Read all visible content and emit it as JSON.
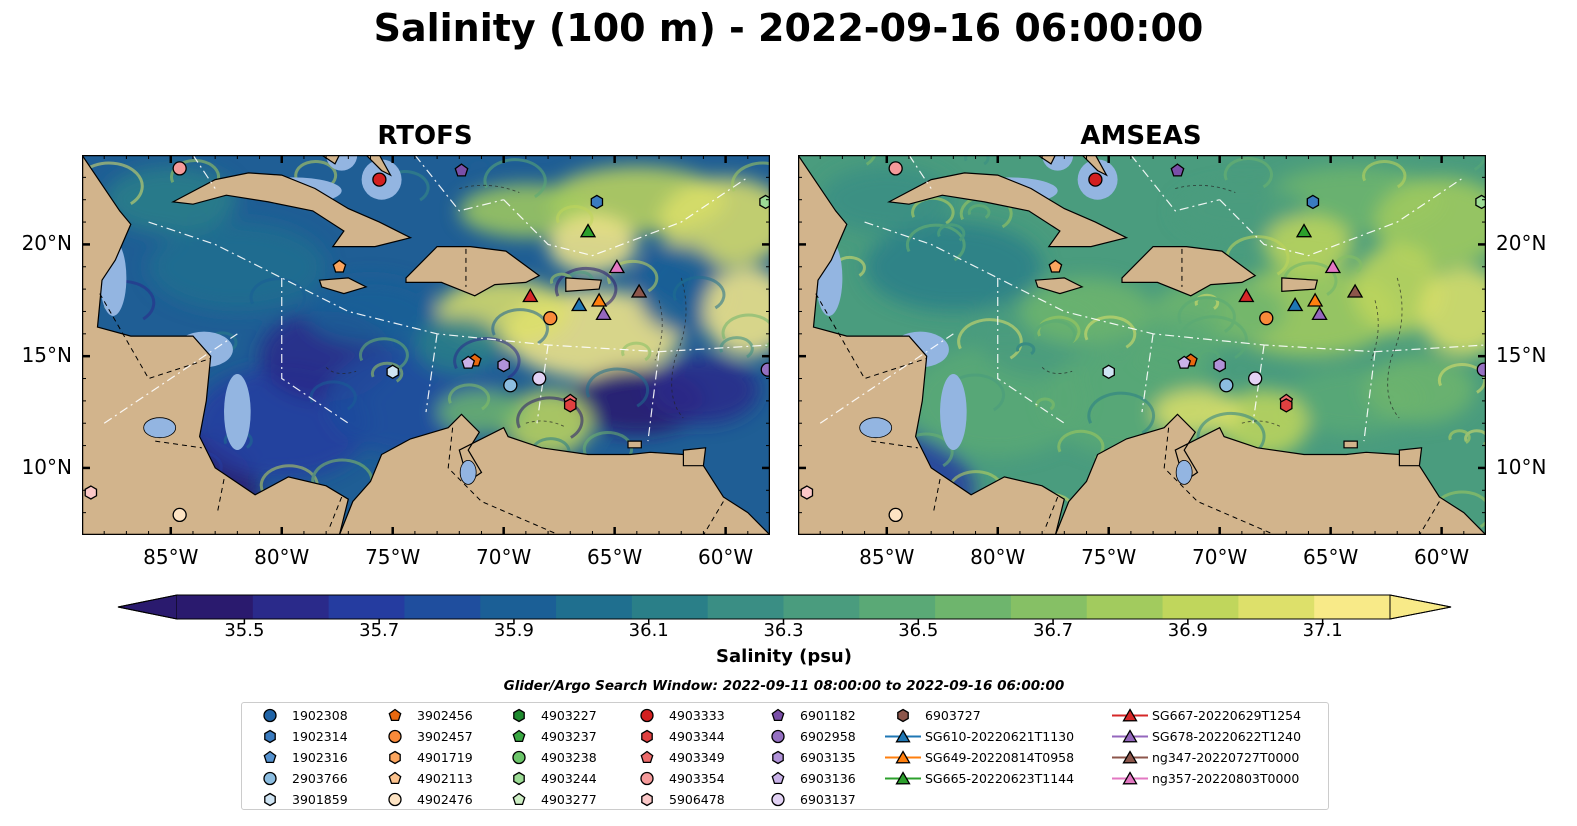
{
  "title": "Salinity (100 m) - 2022-09-16 06:00:00",
  "panels": [
    {
      "title": "RTOFS"
    },
    {
      "title": "AMSEAS"
    }
  ],
  "axes": {
    "x_ticks": [
      "85°W",
      "80°W",
      "75°W",
      "70°W",
      "65°W",
      "60°W"
    ],
    "y_ticks": [
      "20°N",
      "15°N",
      "10°N"
    ],
    "lon_range": [
      -89,
      -58
    ],
    "lat_range": [
      7,
      24
    ]
  },
  "colorbar": {
    "label": "Salinity (psu)",
    "ticks": [
      "35.5",
      "35.7",
      "35.9",
      "36.1",
      "36.3",
      "36.5",
      "36.7",
      "36.9",
      "37.1"
    ],
    "range": [
      35.4,
      37.2
    ],
    "colormap": "haline",
    "colors": [
      "#2a1a6e",
      "#2a2a8a",
      "#253ca0",
      "#1f4e9e",
      "#1b5f96",
      "#1f6f8f",
      "#2a7f88",
      "#3a8e84",
      "#4a9c7e",
      "#5aa976",
      "#6eb56d",
      "#86c065",
      "#a2cb5e",
      "#c0d65c",
      "#dde06a",
      "#f8ea88"
    ]
  },
  "legend": {
    "title": "Glider/Argo Search Window: 2022-09-11 08:00:00 to 2022-09-16 06:00:00",
    "columns": [
      [
        {
          "label": "1902308",
          "marker": "circle",
          "color": "#1f63a6"
        },
        {
          "label": "1902314",
          "marker": "hexagon",
          "color": "#3a7bbf"
        },
        {
          "label": "1902316",
          "marker": "pentagon",
          "color": "#5592cf"
        },
        {
          "label": "2903766",
          "marker": "circle",
          "color": "#8cbde0"
        },
        {
          "label": "3901859",
          "marker": "hexagon",
          "color": "#cfe4f3"
        }
      ],
      [
        {
          "label": "3902456",
          "marker": "pentagon",
          "color": "#e8680f"
        },
        {
          "label": "3902457",
          "marker": "circle",
          "color": "#f98a3a"
        },
        {
          "label": "4901719",
          "marker": "hexagon",
          "color": "#fba55e"
        },
        {
          "label": "4902113",
          "marker": "pentagon",
          "color": "#fcc38e"
        },
        {
          "label": "4902476",
          "marker": "circle",
          "color": "#fde3c3"
        }
      ],
      [
        {
          "label": "4903227",
          "marker": "hexagon",
          "color": "#1e8a2e"
        },
        {
          "label": "4903237",
          "marker": "pentagon",
          "color": "#3aa843"
        },
        {
          "label": "4903238",
          "marker": "circle",
          "color": "#6cc56a"
        },
        {
          "label": "4903244",
          "marker": "hexagon",
          "color": "#9cdc95"
        },
        {
          "label": "4903277",
          "marker": "pentagon",
          "color": "#cdeec4"
        }
      ],
      [
        {
          "label": "4903333",
          "marker": "circle",
          "color": "#d31f1f"
        },
        {
          "label": "4903344",
          "marker": "hexagon",
          "color": "#e04040"
        },
        {
          "label": "4903349",
          "marker": "pentagon",
          "color": "#ec6b6b"
        },
        {
          "label": "4903354",
          "marker": "circle",
          "color": "#f59a9a"
        },
        {
          "label": "5906478",
          "marker": "hexagon",
          "color": "#fbc8c8"
        }
      ],
      [
        {
          "label": "6901182",
          "marker": "pentagon",
          "color": "#7a4fa8"
        },
        {
          "label": "6902958",
          "marker": "circle",
          "color": "#9570c2"
        },
        {
          "label": "6903135",
          "marker": "hexagon",
          "color": "#b092d8"
        },
        {
          "label": "6903136",
          "marker": "pentagon",
          "color": "#c9b2e8"
        },
        {
          "label": "6903137",
          "marker": "circle",
          "color": "#e2d2f4"
        }
      ],
      [
        {
          "label": "6903727",
          "marker": "hexagon",
          "color": "#8c564b"
        },
        {
          "label": "SG610-20220621T1130",
          "marker": "triangle",
          "color": "#1f77b4",
          "line": true
        },
        {
          "label": "SG649-20220814T0958",
          "marker": "triangle",
          "color": "#ff7f0e",
          "line": true
        },
        {
          "label": "SG665-20220623T1144",
          "marker": "triangle",
          "color": "#2ca02c",
          "line": true
        }
      ],
      [
        {
          "label": "SG667-20220629T1254",
          "marker": "triangle",
          "color": "#d62728",
          "line": true
        },
        {
          "label": "SG678-20220622T1240",
          "marker": "triangle",
          "color": "#9467bd",
          "line": true
        },
        {
          "label": "ng347-20220727T0000",
          "marker": "triangle",
          "color": "#8c564b",
          "line": true
        },
        {
          "label": "ng357-20220803T0000",
          "marker": "triangle",
          "color": "#e377c2",
          "line": true
        }
      ]
    ]
  },
  "map_points": [
    {
      "lon": -84.6,
      "lat": 23.4,
      "marker": "circle",
      "color": "#f59a9a"
    },
    {
      "lon": -75.6,
      "lat": 22.9,
      "marker": "circle",
      "color": "#d31f1f"
    },
    {
      "lon": -71.9,
      "lat": 23.3,
      "marker": "pentagon",
      "color": "#7a4fa8"
    },
    {
      "lon": -65.8,
      "lat": 21.9,
      "marker": "hexagon",
      "color": "#3a7bbf"
    },
    {
      "lon": -58.2,
      "lat": 21.9,
      "marker": "hexagon",
      "color": "#9cdc95"
    },
    {
      "lon": -77.4,
      "lat": 19.0,
      "marker": "pentagon",
      "color": "#fba55e"
    },
    {
      "lon": -66.2,
      "lat": 20.6,
      "marker": "triangle",
      "color": "#2ca02c"
    },
    {
      "lon": -64.9,
      "lat": 19.0,
      "marker": "triangle",
      "color": "#e377c2"
    },
    {
      "lon": -68.8,
      "lat": 17.7,
      "marker": "triangle",
      "color": "#d62728"
    },
    {
      "lon": -66.6,
      "lat": 17.3,
      "marker": "triangle",
      "color": "#1f77b4"
    },
    {
      "lon": -65.7,
      "lat": 17.5,
      "marker": "triangle",
      "color": "#ff7f0e"
    },
    {
      "lon": -65.5,
      "lat": 16.9,
      "marker": "triangle",
      "color": "#9467bd"
    },
    {
      "lon": -63.9,
      "lat": 17.9,
      "marker": "triangle",
      "color": "#8c564b"
    },
    {
      "lon": -67.9,
      "lat": 16.7,
      "marker": "circle",
      "color": "#f98a3a"
    },
    {
      "lon": -71.3,
      "lat": 14.8,
      "marker": "pentagon",
      "color": "#e8680f"
    },
    {
      "lon": -71.6,
      "lat": 14.7,
      "marker": "pentagon",
      "color": "#c9b2e8"
    },
    {
      "lon": -70.0,
      "lat": 14.6,
      "marker": "hexagon",
      "color": "#b092d8"
    },
    {
      "lon": -75.0,
      "lat": 14.3,
      "marker": "hexagon",
      "color": "#cfe4f3"
    },
    {
      "lon": -69.7,
      "lat": 13.7,
      "marker": "circle",
      "color": "#8cbde0"
    },
    {
      "lon": -68.4,
      "lat": 14.0,
      "marker": "circle",
      "color": "#e2d2f4"
    },
    {
      "lon": -67.0,
      "lat": 13.0,
      "marker": "pentagon",
      "color": "#ec6b6b"
    },
    {
      "lon": -67.0,
      "lat": 12.8,
      "marker": "hexagon",
      "color": "#e04040"
    },
    {
      "lon": -58.1,
      "lat": 14.4,
      "marker": "circle",
      "color": "#9570c2"
    },
    {
      "lon": -88.6,
      "lat": 8.9,
      "marker": "hexagon",
      "color": "#fbc8c8"
    },
    {
      "lon": -84.6,
      "lat": 7.9,
      "marker": "circle",
      "color": "#fde3c3"
    }
  ]
}
